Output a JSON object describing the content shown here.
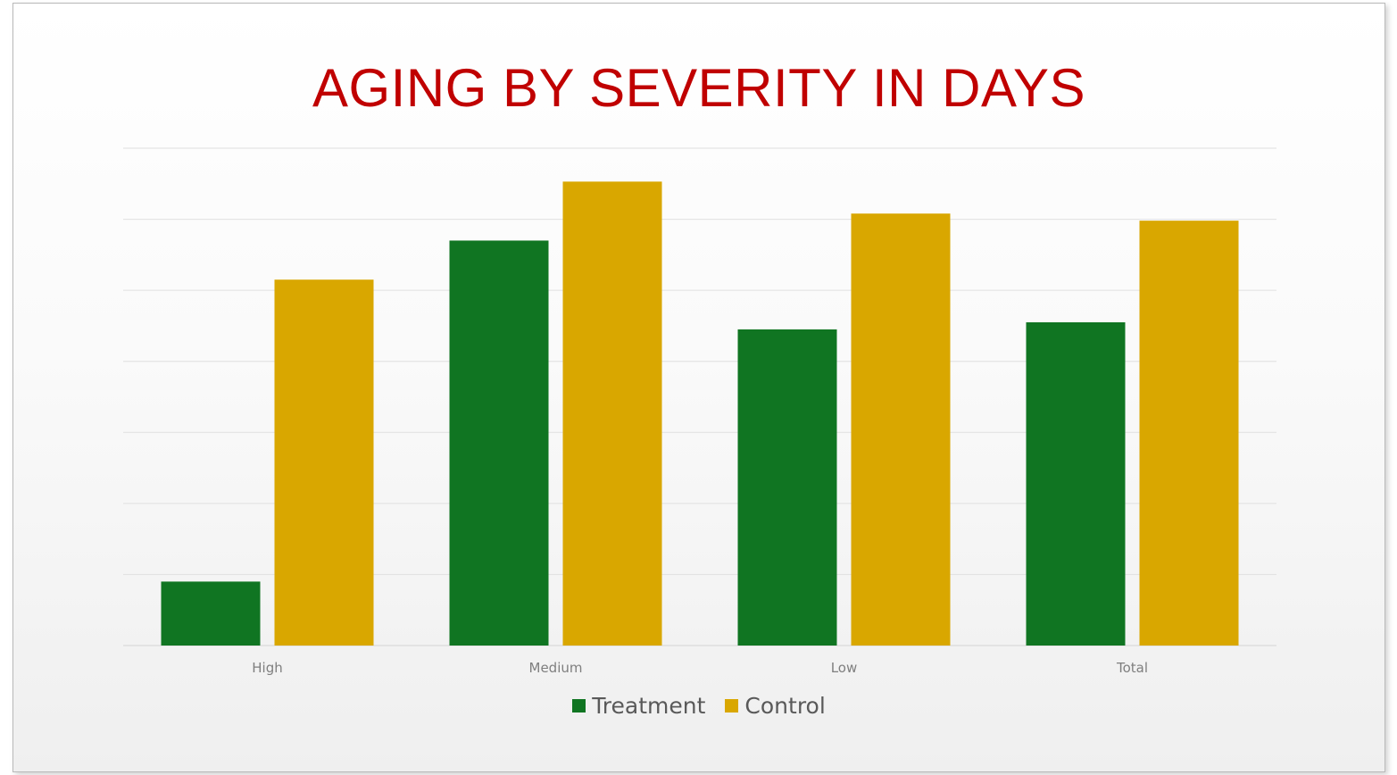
{
  "chart_data": {
    "type": "bar",
    "title": "AGING BY SEVERITY IN DAYS",
    "categories": [
      "High",
      "Medium",
      "Low",
      "Total"
    ],
    "series": [
      {
        "name": "Treatment",
        "color": "#107522",
        "values": [
          0.9,
          5.7,
          4.45,
          4.55
        ]
      },
      {
        "name": "Control",
        "color": "#d9a700",
        "values": [
          5.15,
          6.53,
          6.08,
          5.98
        ]
      }
    ],
    "ylim": [
      0,
      7
    ],
    "grid": true,
    "y_tick_labels_shown": false,
    "legend_position": "bottom"
  }
}
